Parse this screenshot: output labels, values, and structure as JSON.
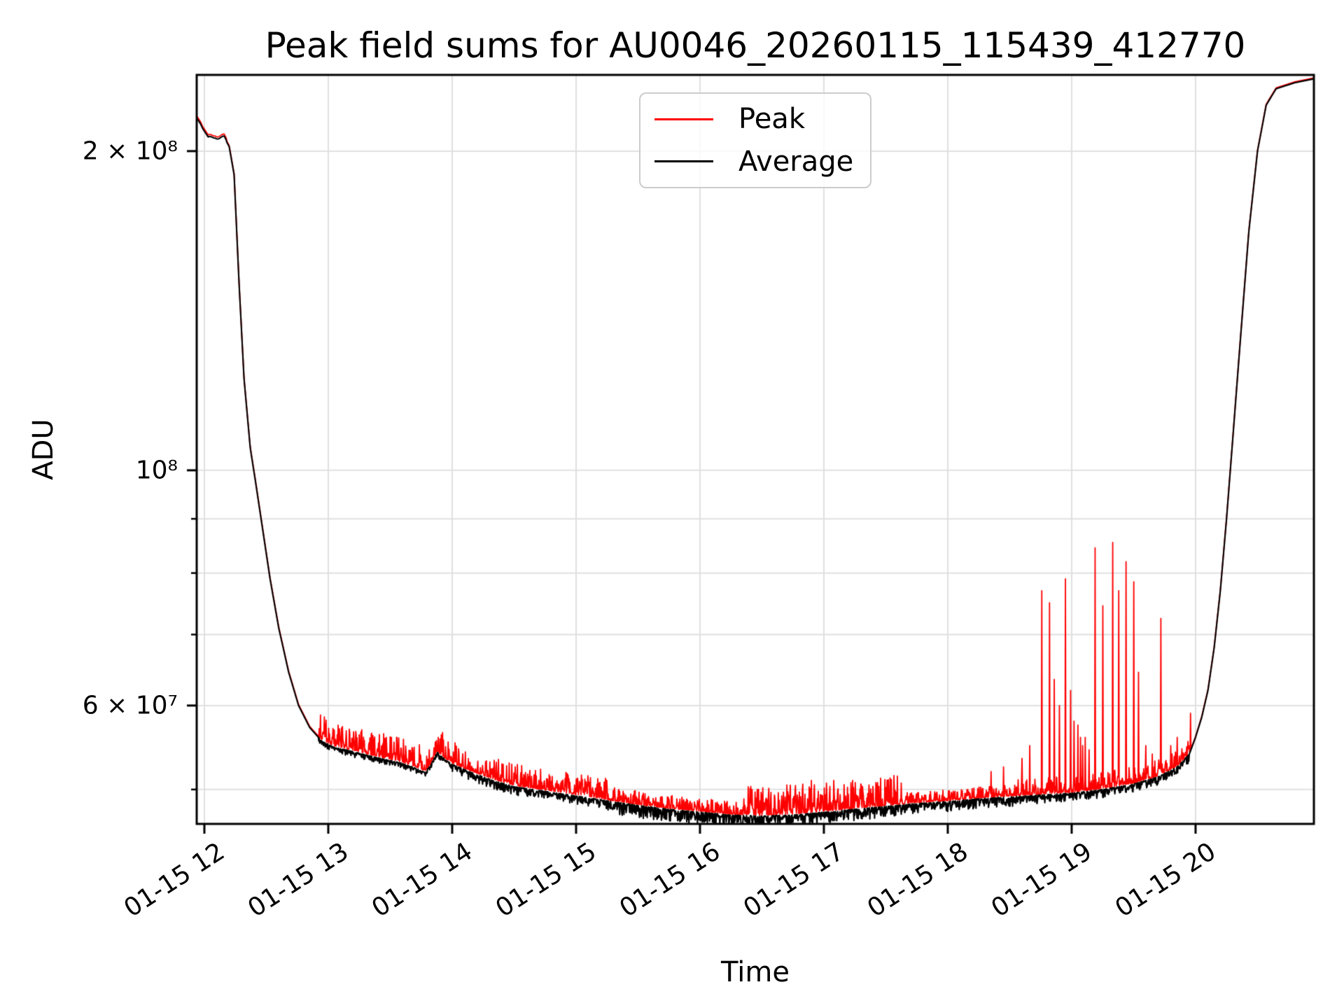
{
  "colors": {
    "peak": "#ff0000",
    "average": "#000000",
    "grid": "#e0e0e0",
    "spine": "#000000",
    "background": "#ffffff",
    "legend_border": "#cccccc"
  },
  "chart_data": {
    "type": "line",
    "title": "Peak field sums for AU0046_20260115_115439_412770",
    "xlabel": "Time",
    "ylabel": "ADU",
    "y_scale": "log",
    "grid": true,
    "legend_position": "upper center",
    "x_range_hours": [
      11.938,
      20.955
    ],
    "y_range": [
      46400000,
      236000000
    ],
    "x_ticks": [
      {
        "hour": 12,
        "label": "01-15 12"
      },
      {
        "hour": 13,
        "label": "01-15 13"
      },
      {
        "hour": 14,
        "label": "01-15 14"
      },
      {
        "hour": 15,
        "label": "01-15 15"
      },
      {
        "hour": 16,
        "label": "01-15 16"
      },
      {
        "hour": 17,
        "label": "01-15 17"
      },
      {
        "hour": 18,
        "label": "01-15 18"
      },
      {
        "hour": 19,
        "label": "01-15 19"
      },
      {
        "hour": 20,
        "label": "01-15 20"
      }
    ],
    "y_ticks": [
      {
        "value": 200000000,
        "label": "2 × 10⁸"
      },
      {
        "value": 100000000,
        "label": "10⁸"
      },
      {
        "value": 60000000,
        "label": "6 × 10⁷"
      }
    ],
    "y_minor_ticks": [
      50000000,
      70000000,
      80000000,
      90000000
    ],
    "y_gridline_values": [
      50000000,
      60000000,
      70000000,
      80000000,
      90000000,
      100000000,
      200000000
    ],
    "legend": [
      {
        "label": "Peak",
        "color": "#ff0000"
      },
      {
        "label": "Average",
        "color": "#000000"
      }
    ],
    "series": {
      "average_keypoints": [
        [
          11.93,
          214000000
        ],
        [
          11.97,
          212000000
        ],
        [
          12.0,
          209000000
        ],
        [
          12.03,
          205500000
        ],
        [
          12.06,
          206000000
        ],
        [
          12.09,
          207000000
        ],
        [
          12.12,
          206500000
        ],
        [
          12.16,
          206000000
        ],
        [
          12.2,
          202000000
        ],
        [
          12.24,
          190000000
        ],
        [
          12.28,
          150000000
        ],
        [
          12.32,
          122000000
        ],
        [
          12.37,
          105000000
        ],
        [
          12.41,
          98000000
        ],
        [
          12.47,
          88000000
        ],
        [
          12.53,
          79000000
        ],
        [
          12.6,
          71000000
        ],
        [
          12.68,
          64500000
        ],
        [
          12.76,
          60000000
        ],
        [
          12.85,
          57200000
        ],
        [
          12.95,
          55500000
        ],
        [
          13.05,
          54800000
        ],
        [
          13.2,
          54300000
        ],
        [
          13.33,
          53800000
        ],
        [
          13.45,
          53400000
        ],
        [
          13.58,
          53000000
        ],
        [
          13.7,
          52400000
        ],
        [
          13.78,
          51900000
        ],
        [
          13.82,
          52600000
        ],
        [
          13.88,
          54200000
        ],
        [
          13.94,
          53400000
        ],
        [
          14.0,
          52800000
        ],
        [
          14.17,
          51800000
        ],
        [
          14.33,
          51000000
        ],
        [
          14.5,
          50300000
        ],
        [
          14.75,
          49800000
        ],
        [
          15.0,
          49300000
        ],
        [
          15.25,
          48800000
        ],
        [
          15.5,
          48300000
        ],
        [
          15.75,
          47900000
        ],
        [
          16.0,
          47600000
        ],
        [
          16.25,
          47300000
        ],
        [
          16.5,
          47200000
        ],
        [
          16.75,
          47300000
        ],
        [
          17.0,
          47600000
        ],
        [
          17.25,
          47900000
        ],
        [
          17.5,
          48200000
        ],
        [
          17.75,
          48500000
        ],
        [
          18.0,
          48700000
        ],
        [
          18.25,
          49000000
        ],
        [
          18.5,
          49200000
        ],
        [
          18.75,
          49400000
        ],
        [
          19.0,
          49600000
        ],
        [
          19.25,
          50000000
        ],
        [
          19.5,
          50600000
        ],
        [
          19.7,
          51400000
        ],
        [
          19.85,
          52500000
        ],
        [
          19.95,
          54000000
        ],
        [
          20.0,
          56000000
        ],
        [
          20.05,
          58500000
        ],
        [
          20.1,
          62000000
        ],
        [
          20.15,
          68000000
        ],
        [
          20.2,
          77000000
        ],
        [
          20.25,
          90000000
        ],
        [
          20.3,
          107000000
        ],
        [
          20.36,
          132000000
        ],
        [
          20.43,
          168000000
        ],
        [
          20.5,
          200000000
        ],
        [
          20.57,
          221000000
        ],
        [
          20.65,
          229000000
        ],
        [
          20.8,
          232000000
        ],
        [
          20.955,
          234000000
        ]
      ],
      "peak_spikes": [
        [
          13.08,
          57500000
        ],
        [
          13.17,
          57000000
        ],
        [
          13.35,
          56500000
        ],
        [
          13.55,
          56000000
        ],
        [
          13.87,
          55500000
        ],
        [
          16.42,
          50000000
        ],
        [
          16.7,
          50500000
        ],
        [
          16.9,
          51000000
        ],
        [
          17.08,
          51000000
        ],
        [
          17.3,
          50500000
        ],
        [
          18.35,
          52000000
        ],
        [
          18.45,
          52500000
        ],
        [
          18.6,
          53500000
        ],
        [
          18.66,
          55000000
        ],
        [
          18.76,
          77000000
        ],
        [
          18.82,
          75000000
        ],
        [
          18.86,
          63500000
        ],
        [
          18.9,
          60000000
        ],
        [
          18.95,
          79000000
        ],
        [
          18.99,
          62000000
        ],
        [
          19.02,
          58000000
        ],
        [
          19.05,
          57500000
        ],
        [
          19.07,
          56000000
        ],
        [
          19.09,
          55000000
        ],
        [
          19.11,
          56000000
        ],
        [
          19.14,
          54500000
        ],
        [
          19.19,
          84500000
        ],
        [
          19.25,
          74500000
        ],
        [
          19.33,
          85500000
        ],
        [
          19.38,
          77000000
        ],
        [
          19.44,
          82000000
        ],
        [
          19.5,
          78500000
        ],
        [
          19.54,
          64500000
        ],
        [
          19.6,
          55000000
        ],
        [
          19.65,
          54000000
        ],
        [
          19.72,
          72500000
        ],
        [
          19.8,
          55000000
        ],
        [
          19.85,
          56000000
        ],
        [
          19.96,
          59000000
        ]
      ],
      "noise_segments": [
        {
          "t0": 11.93,
          "t1": 12.18,
          "black": 0.0,
          "red": 0.0,
          "red_bias": 0.0045
        },
        {
          "t0": 12.18,
          "t1": 12.92,
          "black": 0.0,
          "red": 0.0,
          "red_bias": 0.0025
        },
        {
          "t0": 12.92,
          "t1": 13.98,
          "black": 0.004,
          "red": 0.018,
          "red_bias": 0.003
        },
        {
          "t0": 13.98,
          "t1": 15.25,
          "black": 0.006,
          "red": 0.016,
          "red_bias": 0.003
        },
        {
          "t0": 15.25,
          "t1": 16.35,
          "black": 0.009,
          "red": 0.01,
          "red_bias": 0.002
        },
        {
          "t0": 16.35,
          "t1": 17.65,
          "black": 0.008,
          "red": 0.022,
          "red_bias": 0.002
        },
        {
          "t0": 17.65,
          "t1": 18.55,
          "black": 0.007,
          "red": 0.008,
          "red_bias": 0.002
        },
        {
          "t0": 18.55,
          "t1": 19.95,
          "black": 0.006,
          "red": 0.012,
          "red_bias": 0.002
        },
        {
          "t0": 19.95,
          "t1": 20.96,
          "black": 0.0,
          "red": 0.0,
          "red_bias": 0.002
        }
      ]
    }
  }
}
